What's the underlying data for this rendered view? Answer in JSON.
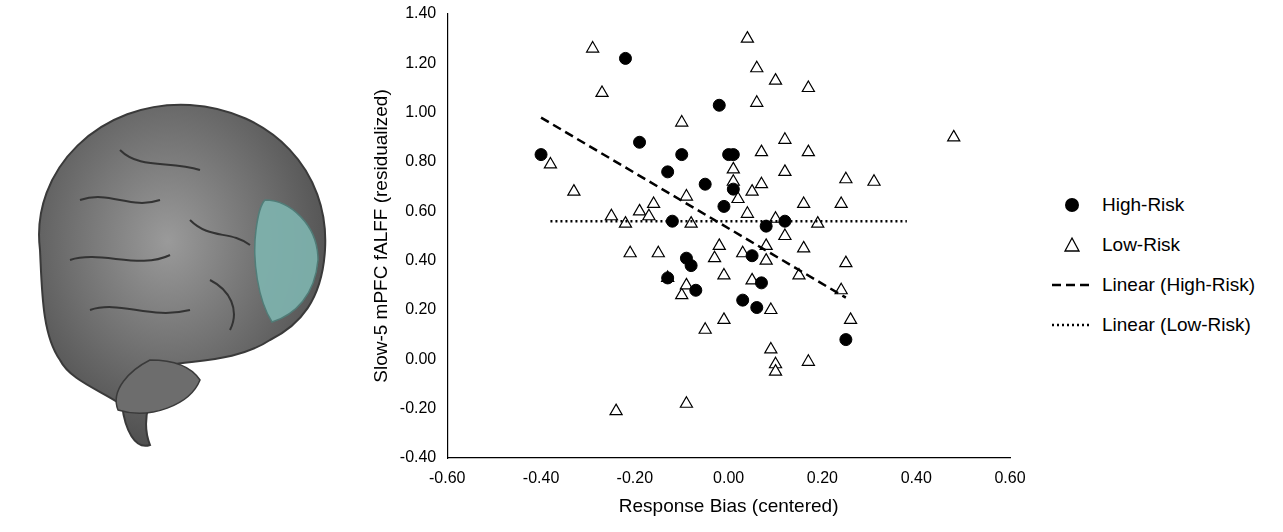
{
  "chart_data": {
    "type": "scatter",
    "x_label": "Response Bias (centered)",
    "y_label": "Slow-5 mPFC fALFF (residualized)",
    "xlim": [
      -0.6,
      0.6
    ],
    "xticks": [
      {
        "value": -0.6,
        "label": "-0.60"
      },
      {
        "value": -0.4,
        "label": "-0.40"
      },
      {
        "value": -0.2,
        "label": "-0.20"
      },
      {
        "value": 0,
        "label": "0.00"
      },
      {
        "value": 0.2,
        "label": "0.20"
      },
      {
        "value": 0.4,
        "label": "0.40"
      },
      {
        "value": 0.6,
        "label": "0.60"
      }
    ],
    "ylim": [
      -0.4,
      1.4
    ],
    "yticks": [
      {
        "value": -0.4,
        "label": "-0.40"
      },
      {
        "value": -0.2,
        "label": "-0.20"
      },
      {
        "value": 0,
        "label": "0.00"
      },
      {
        "value": 0.2,
        "label": "0.20"
      },
      {
        "value": 0.4,
        "label": "0.40"
      },
      {
        "value": 0.6,
        "label": "0.60"
      },
      {
        "value": 0.8,
        "label": "0.80"
      },
      {
        "value": 1.0,
        "label": "1.00"
      },
      {
        "value": 1.2,
        "label": "1.20"
      },
      {
        "value": 1.4,
        "label": "1.40"
      }
    ],
    "grid": false,
    "legend": "right",
    "series": [
      {
        "name": "High-Risk",
        "type": "scatter",
        "marker": "circle",
        "color": "#000000",
        "x": [
          -0.4,
          -0.22,
          -0.19,
          -0.13,
          -0.12,
          -0.1,
          -0.09,
          -0.08,
          -0.07,
          -0.13,
          -0.05,
          -0.02,
          -0.01,
          0.0,
          0.01,
          0.01,
          0.03,
          0.05,
          0.06,
          0.07,
          0.08,
          0.12,
          0.25
        ],
        "values": [
          0.83,
          1.22,
          0.88,
          0.76,
          0.56,
          0.83,
          0.41,
          0.38,
          0.28,
          0.33,
          0.71,
          1.03,
          0.62,
          0.83,
          0.83,
          0.69,
          0.24,
          0.42,
          0.21,
          0.31,
          0.54,
          0.56,
          0.08
        ]
      },
      {
        "name": "Low-Risk",
        "type": "scatter",
        "marker": "triangle",
        "color": "#000000",
        "x": [
          -0.29,
          -0.27,
          -0.38,
          -0.33,
          -0.25,
          -0.24,
          -0.22,
          -0.21,
          -0.19,
          -0.17,
          -0.16,
          -0.15,
          -0.13,
          -0.1,
          -0.1,
          -0.09,
          -0.09,
          -0.08,
          -0.09,
          -0.05,
          -0.03,
          -0.02,
          -0.01,
          -0.01,
          0.01,
          0.01,
          0.02,
          0.03,
          0.04,
          0.04,
          0.05,
          0.05,
          0.06,
          0.06,
          0.07,
          0.07,
          0.08,
          0.08,
          0.09,
          0.09,
          0.1,
          0.1,
          0.1,
          0.1,
          0.12,
          0.12,
          0.12,
          0.15,
          0.16,
          0.16,
          0.17,
          0.17,
          0.17,
          0.19,
          0.24,
          0.24,
          0.25,
          0.25,
          0.26,
          0.31,
          0.48
        ],
        "values": [
          1.26,
          1.08,
          0.79,
          0.68,
          0.58,
          -0.21,
          0.55,
          0.43,
          0.6,
          0.58,
          0.63,
          0.43,
          0.33,
          0.96,
          0.26,
          0.66,
          0.3,
          0.55,
          -0.18,
          0.12,
          0.41,
          0.46,
          0.16,
          0.34,
          0.72,
          0.77,
          0.65,
          0.43,
          1.3,
          0.59,
          0.32,
          0.68,
          1.18,
          1.04,
          0.71,
          0.84,
          0.46,
          0.4,
          0.2,
          0.04,
          -0.02,
          -0.05,
          0.57,
          1.13,
          0.5,
          0.76,
          0.89,
          0.34,
          0.63,
          0.45,
          0.84,
          1.1,
          -0.01,
          0.55,
          0.28,
          0.63,
          0.73,
          0.39,
          0.16,
          0.72,
          0.9
        ]
      },
      {
        "name": "Linear (High-Risk)",
        "type": "line",
        "line_style": "dashed",
        "color": "#000000",
        "x": [
          -0.4,
          0.25
        ],
        "values": [
          0.98,
          0.25
        ]
      },
      {
        "name": "Linear (Low-Risk)",
        "type": "line",
        "line_style": "dotted",
        "color": "#000000",
        "x": [
          -0.38,
          0.38
        ],
        "values": [
          0.56,
          0.56
        ]
      }
    ]
  }
}
